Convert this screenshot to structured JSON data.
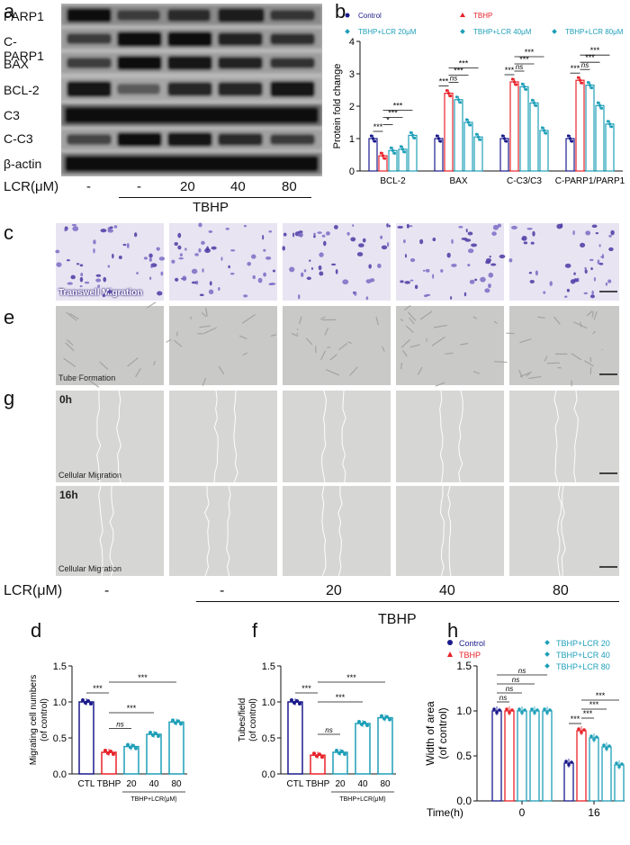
{
  "panels": {
    "a": "a",
    "b": "b",
    "c": "c",
    "e": "e",
    "g": "g",
    "d": "d",
    "f": "f",
    "h": "h"
  },
  "blot": {
    "rows": [
      "PARP1",
      "C-PARP1",
      "BAX",
      "BCL-2",
      "C3",
      "C-C3",
      "β-actin"
    ],
    "lcr_label": "LCR(μM)",
    "lanes": [
      "-",
      "-",
      "20",
      "40",
      "80"
    ],
    "tbhp_label": "TBHP"
  },
  "images": {
    "transwell_label": "Transwell Migration",
    "tube_label": "Tube Formation",
    "cellular_label": "Cellular Migration",
    "t0": "0h",
    "t16": "16h",
    "lcr_label": "LCR(μM)",
    "lanes": [
      "-",
      "-",
      "20",
      "40",
      "80"
    ],
    "tbhp_label": "TBHP"
  },
  "chart_data": [
    {
      "panel": "b",
      "type": "bar",
      "ylabel": "Protein fold change",
      "ylim": [
        0,
        4
      ],
      "yticks": [
        "0",
        "1",
        "2",
        "3",
        "4"
      ],
      "categories": [
        "BCL-2",
        "BAX",
        "C-C3/C3",
        "C-PARP1/PARP1"
      ],
      "legend": [
        "Control",
        "TBHP",
        "TBHP+LCR 20μM",
        "TBHP+LCR 40μM",
        "TBHP+LCR 80μM"
      ],
      "series": [
        {
          "name": "Control",
          "values": [
            1.0,
            1.0,
            1.0,
            1.0
          ],
          "color": "#1a1a8c"
        },
        {
          "name": "TBHP",
          "values": [
            0.47,
            2.4,
            2.75,
            2.8
          ],
          "color": "#e8232a"
        },
        {
          "name": "TBHP+LCR 20μM",
          "values": [
            0.63,
            2.2,
            2.6,
            2.65
          ],
          "color": "#1e9fb8"
        },
        {
          "name": "TBHP+LCR 40μM",
          "values": [
            0.67,
            1.5,
            2.1,
            2.02
          ],
          "color": "#1e9fb8"
        },
        {
          "name": "TBHP+LCR 80μM",
          "values": [
            1.1,
            1.05,
            1.25,
            1.45
          ],
          "color": "#1e9fb8"
        }
      ],
      "significance": [
        [
          "***",
          "*",
          "***",
          "***"
        ],
        [
          "***",
          "ns",
          "***",
          "***"
        ],
        [
          "***",
          "ns",
          "***",
          "***"
        ],
        [
          "***",
          "ns",
          "***",
          "***"
        ]
      ]
    },
    {
      "panel": "d",
      "type": "bar",
      "ylabel": "Migrating cell numbers (of control)",
      "ylim": [
        0,
        1.5
      ],
      "yticks": [
        "0.0",
        "0.5",
        "1.0",
        "1.5"
      ],
      "categories": [
        "CTL",
        "TBHP",
        "20",
        "40",
        "80"
      ],
      "group_label": "TBHP+LCR(μM)",
      "values": [
        1.0,
        0.3,
        0.38,
        0.55,
        0.72
      ],
      "colors": [
        "#1a1a8c",
        "#e8232a",
        "#1e9fb8",
        "#1e9fb8",
        "#1e9fb8"
      ],
      "significance": [
        "***",
        "ns",
        "***",
        "***"
      ]
    },
    {
      "panel": "f",
      "type": "bar",
      "ylabel": "Tubes/field (of control)",
      "ylim": [
        0,
        1.5
      ],
      "yticks": [
        "0.0",
        "0.5",
        "1.0",
        "1.5"
      ],
      "categories": [
        "CTL",
        "TBHP",
        "20",
        "40",
        "80"
      ],
      "group_label": "TBHP+LCR(μM)",
      "values": [
        1.0,
        0.26,
        0.3,
        0.7,
        0.78
      ],
      "colors": [
        "#1a1a8c",
        "#e8232a",
        "#1e9fb8",
        "#1e9fb8",
        "#1e9fb8"
      ],
      "significance": [
        "***",
        "ns",
        "***",
        "***"
      ]
    },
    {
      "panel": "h",
      "type": "bar",
      "ylabel": "Width of area (of control)",
      "ylim": [
        0,
        1.5
      ],
      "yticks": [
        "0.0",
        "0.5",
        "1.0",
        "1.5"
      ],
      "xlabel": "Time(h)",
      "categories": [
        "0",
        "16"
      ],
      "legend": [
        "Control",
        "TBHP",
        "TBHP+LCR 20",
        "TBHP+LCR 40",
        "TBHP+LCR 80"
      ],
      "series": [
        {
          "name": "Control",
          "values": [
            1.0,
            0.42
          ],
          "color": "#1a1a8c"
        },
        {
          "name": "TBHP",
          "values": [
            1.0,
            0.78
          ],
          "color": "#e8232a"
        },
        {
          "name": "TBHP+LCR 20",
          "values": [
            1.0,
            0.7
          ],
          "color": "#1e9fb8"
        },
        {
          "name": "TBHP+LCR 40",
          "values": [
            1.0,
            0.6
          ],
          "color": "#1e9fb8"
        },
        {
          "name": "TBHP+LCR 80",
          "values": [
            1.0,
            0.4
          ],
          "color": "#1e9fb8"
        }
      ],
      "significance_0h": [
        "ns",
        "ns",
        "ns",
        "ns"
      ],
      "significance_16h": [
        "***",
        "***",
        "***",
        "***"
      ]
    }
  ]
}
